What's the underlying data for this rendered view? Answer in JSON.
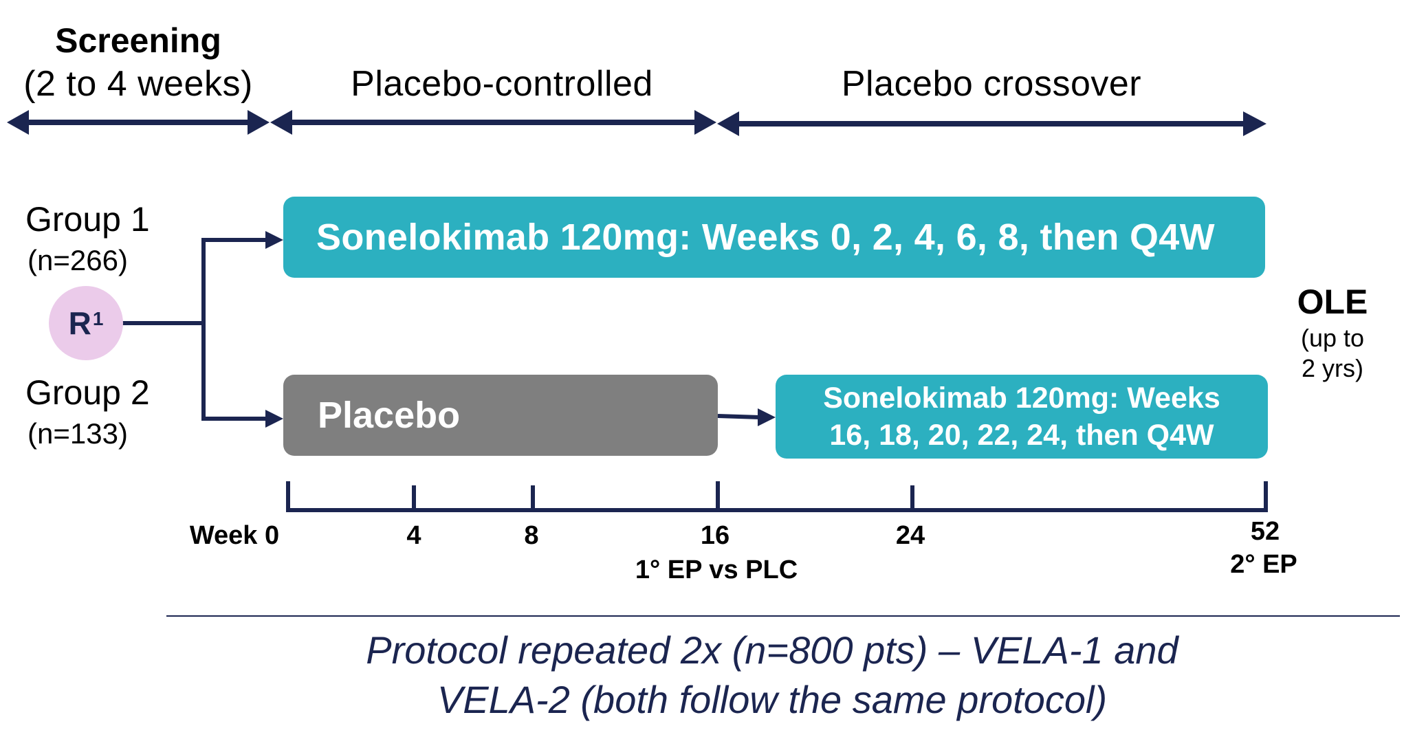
{
  "phases": {
    "screening": {
      "title": "Screening",
      "duration": "(2 to 4 weeks)"
    },
    "placebo_controlled": {
      "label": "Placebo-controlled"
    },
    "placebo_crossover": {
      "label": "Placebo crossover"
    }
  },
  "randomization": {
    "label": "R",
    "superscript": "1"
  },
  "groups": [
    {
      "name": "Group 1",
      "n": "(n=266)"
    },
    {
      "name": "Group 2",
      "n": "(n=133)"
    }
  ],
  "arms": {
    "group1_treatment": "Sonelokimab 120mg: Weeks 0, 2, 4, 6, 8, then Q4W",
    "group2_placebo": "Placebo",
    "group2_treatment_line1": "Sonelokimab 120mg: Weeks",
    "group2_treatment_line2": "16, 18, 20, 22, 24, then Q4W"
  },
  "ole": {
    "title": "OLE",
    "sub_line1": "(up to",
    "sub_line2": "2 yrs)"
  },
  "timeline": {
    "ticks": [
      "Week 0",
      "4",
      "8",
      "16",
      "24",
      "52"
    ],
    "tick_weeks": [
      0,
      4,
      8,
      16,
      24,
      52
    ],
    "primary_endpoint": "1° EP vs PLC",
    "secondary_endpoint": "2° EP"
  },
  "footer": {
    "line1": "Protocol repeated 2x (n=800 pts) – VELA-1 and",
    "line2": "VELA-2 (both follow the same protocol)"
  },
  "colors": {
    "navy": "#1b2550",
    "teal": "#2cb0c0",
    "gray": "#7f7f7f",
    "randomization_circle": "#ebcbea"
  }
}
